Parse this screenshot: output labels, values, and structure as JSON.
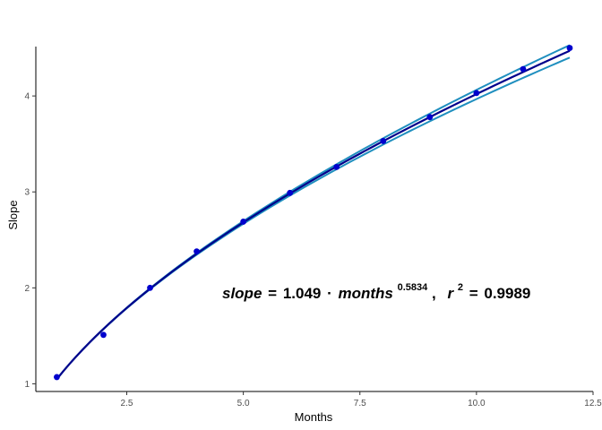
{
  "chart_data": {
    "type": "scatter",
    "title": "",
    "xlabel": "Months",
    "ylabel": "Slope",
    "xlim": [
      0.55,
      12.5
    ],
    "ylim": [
      0.92,
      4.72
    ],
    "x_ticks": [
      2.5,
      5.0,
      7.5,
      10.0,
      12.5
    ],
    "x_tick_labels": [
      "2.5",
      "5.0",
      "7.5",
      "10.0",
      "12.5"
    ],
    "y_ticks": [
      1,
      2,
      3,
      4
    ],
    "y_tick_labels": [
      "1",
      "2",
      "3",
      "4"
    ],
    "grid": false,
    "points": {
      "x": [
        1,
        2,
        3,
        4,
        5,
        6,
        7,
        8,
        9,
        10,
        11,
        12
      ],
      "y": [
        1.07,
        1.51,
        2.0,
        2.38,
        2.69,
        2.99,
        3.26,
        3.53,
        3.78,
        4.03,
        4.28,
        4.5
      ],
      "color": "#0000cd"
    },
    "fit": {
      "coefficient": 1.049,
      "exponent": 0.5834,
      "r_squared": 0.9989,
      "x_range": [
        1,
        12
      ],
      "line_color": "#00008b",
      "band_color": "#1f8fbf",
      "band_lower_x12": 4.4,
      "band_upper_x12": 4.53
    },
    "equation": {
      "lhs": "slope",
      "equals": "=",
      "coef": "1.049",
      "dot": "·",
      "var": "months",
      "exp": "0.5834",
      "comma": ",",
      "r": "r",
      "r_exp": "2",
      "r_equals": "=",
      "r_value": "0.9989"
    },
    "colors": {
      "axis": "#000000",
      "tick_text": "#4d4d4d"
    }
  }
}
